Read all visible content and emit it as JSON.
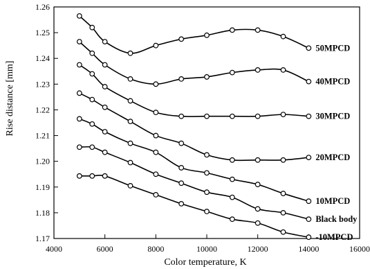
{
  "chart_data": {
    "type": "line",
    "xlabel": "Color temperature, K",
    "ylabel": "Rise distance [mm]",
    "xlim": [
      4000,
      16000
    ],
    "ylim": [
      1.17,
      1.26
    ],
    "x_ticks": [
      4000,
      6000,
      8000,
      10000,
      12000,
      14000,
      16000
    ],
    "y_ticks": [
      1.17,
      1.18,
      1.19,
      1.2,
      1.21,
      1.22,
      1.23,
      1.24,
      1.25,
      1.26
    ],
    "x_tick_labels": [
      "4000",
      "6000",
      "8000",
      "10000",
      "12000",
      "14000",
      "16000"
    ],
    "y_tick_labels": [
      "1.17",
      "1.18",
      "1.19",
      "1.20",
      "1.21",
      "1.22",
      "1.23",
      "1.24",
      "1.25",
      "1.26"
    ],
    "grid": false,
    "legend": "series labels at right end of each curve",
    "x": [
      5000,
      5500,
      6000,
      7000,
      8000,
      9000,
      10000,
      11000,
      12000,
      13000,
      14000
    ],
    "series": [
      {
        "name": "50MPCD",
        "values": [
          1.2565,
          1.252,
          1.2465,
          1.242,
          1.245,
          1.2475,
          1.249,
          1.251,
          1.251,
          1.2485,
          1.244
        ]
      },
      {
        "name": "40MPCD",
        "values": [
          1.2465,
          1.242,
          1.2375,
          1.232,
          1.23,
          1.232,
          1.2328,
          1.2345,
          1.2355,
          1.2355,
          1.231
        ]
      },
      {
        "name": "30MPCD",
        "values": [
          1.2375,
          1.234,
          1.229,
          1.2235,
          1.219,
          1.2175,
          1.2175,
          1.2175,
          1.2175,
          1.2182,
          1.2175
        ]
      },
      {
        "name": "20MPCD",
        "values": [
          1.2265,
          1.224,
          1.221,
          1.2155,
          1.21,
          1.207,
          1.2025,
          1.2005,
          1.2005,
          1.2005,
          1.2015
        ]
      },
      {
        "name": "10MPCD",
        "values": [
          1.2165,
          1.2145,
          1.2115,
          1.207,
          1.2035,
          1.1975,
          1.1955,
          1.193,
          1.191,
          1.1875,
          1.1845
        ]
      },
      {
        "name": "Black body",
        "values": [
          1.2055,
          1.2055,
          1.2035,
          1.1995,
          1.195,
          1.1915,
          1.188,
          1.186,
          1.1815,
          1.18,
          1.1775
        ]
      },
      {
        "name": "-10MPCD",
        "values": [
          1.1943,
          1.1943,
          1.1943,
          1.1905,
          1.187,
          1.1835,
          1.1805,
          1.1775,
          1.176,
          1.1725,
          1.1705
        ]
      }
    ]
  }
}
